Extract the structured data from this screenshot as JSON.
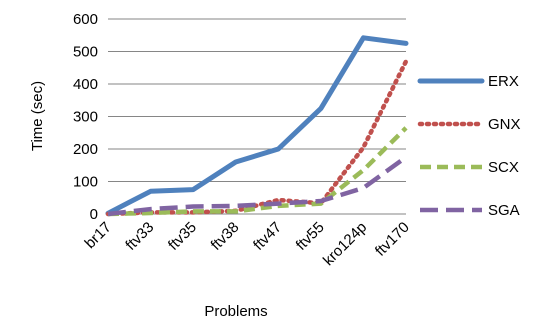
{
  "chart_data": {
    "type": "line",
    "title": "",
    "xlabel": "Problems",
    "ylabel": "Time (sec)",
    "ylim": [
      0,
      600
    ],
    "yticks": [
      0,
      100,
      200,
      300,
      400,
      500,
      600
    ],
    "grid": "horizontal",
    "legend_position": "right",
    "categories": [
      "br17",
      "ftv33",
      "ftv35",
      "ftv38",
      "ftv47",
      "ftv55",
      "kro124p",
      "ftv170"
    ],
    "series": [
      {
        "name": "ERX",
        "color": "#4f81bd",
        "style": "solid",
        "values": [
          2,
          70,
          75,
          160,
          200,
          325,
          542,
          525
        ]
      },
      {
        "name": "GNX",
        "color": "#c0504d",
        "style": "dotted",
        "values": [
          0,
          5,
          5,
          10,
          43,
          33,
          205,
          470
        ]
      },
      {
        "name": "SCX",
        "color": "#9bbb59",
        "style": "dashed",
        "values": [
          0,
          3,
          8,
          8,
          25,
          32,
          135,
          265
        ]
      },
      {
        "name": "SGA",
        "color": "#8064a2",
        "style": "longdash",
        "values": [
          0,
          15,
          23,
          25,
          32,
          40,
          80,
          175
        ]
      }
    ]
  }
}
